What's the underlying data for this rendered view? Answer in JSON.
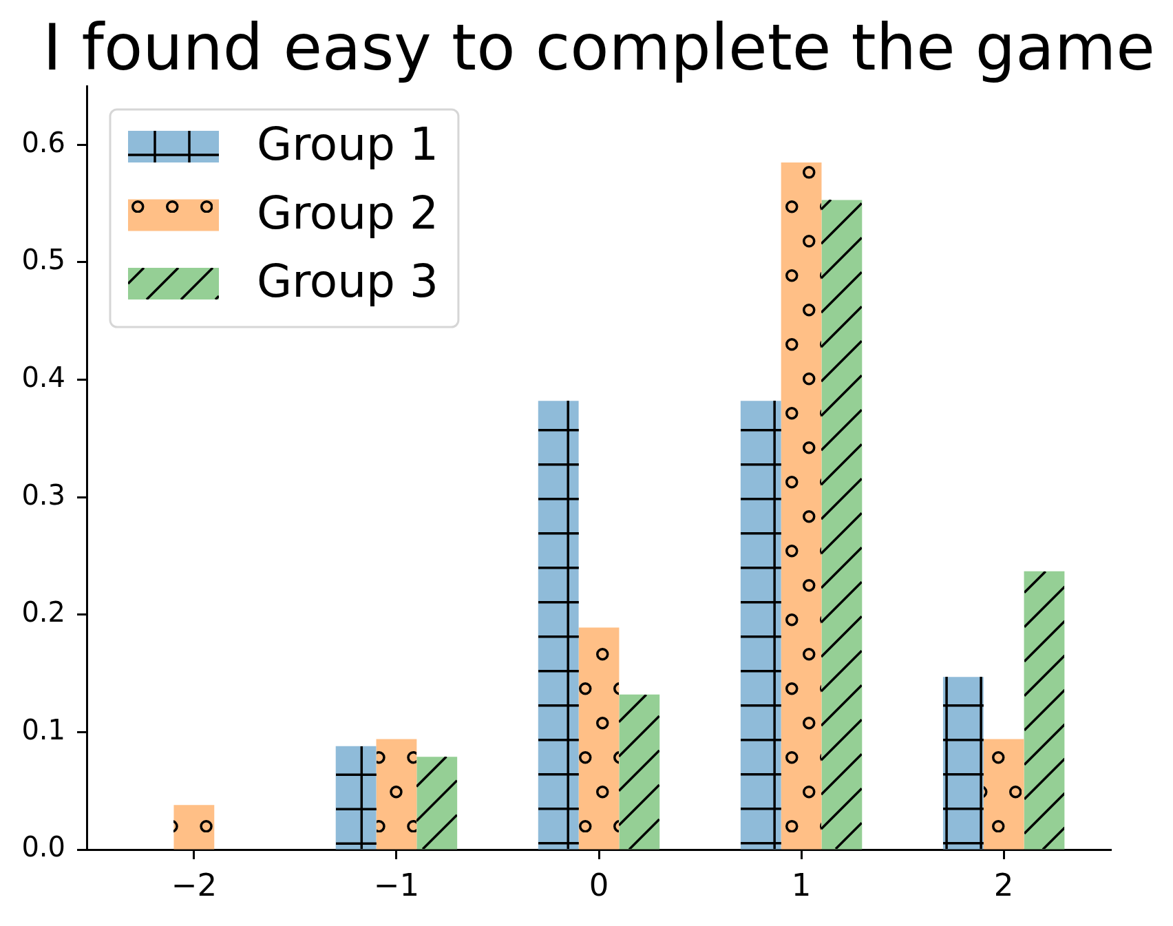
{
  "chart_data": {
    "type": "bar",
    "title": "I found easy to complete the game",
    "x": [
      -2,
      -1,
      0,
      1,
      2
    ],
    "series": [
      {
        "name": "Group 1",
        "color": "#8fbbd9",
        "values": [
          0,
          0.088,
          0.382,
          0.382,
          0.147
        ]
      },
      {
        "name": "Group 2",
        "color": "#ffbf86",
        "values": [
          0.038,
          0.094,
          0.189,
          0.585,
          0.094
        ]
      },
      {
        "name": "Group 3",
        "color": "#95cf95",
        "values": [
          0,
          0.079,
          0.132,
          0.553,
          0.237
        ]
      }
    ],
    "xlim": [
      -2.53,
      2.53
    ],
    "ylim": [
      0,
      0.65
    ],
    "xticks": [
      {
        "value": -2,
        "label": "−2"
      },
      {
        "value": -1,
        "label": "−1"
      },
      0,
      1,
      2
    ],
    "yticks": [
      {
        "value": 0,
        "label": "0.0"
      },
      0.1,
      0.2,
      0.3,
      0.4,
      0.5,
      0.6
    ],
    "grid": false,
    "legend": "top left"
  }
}
